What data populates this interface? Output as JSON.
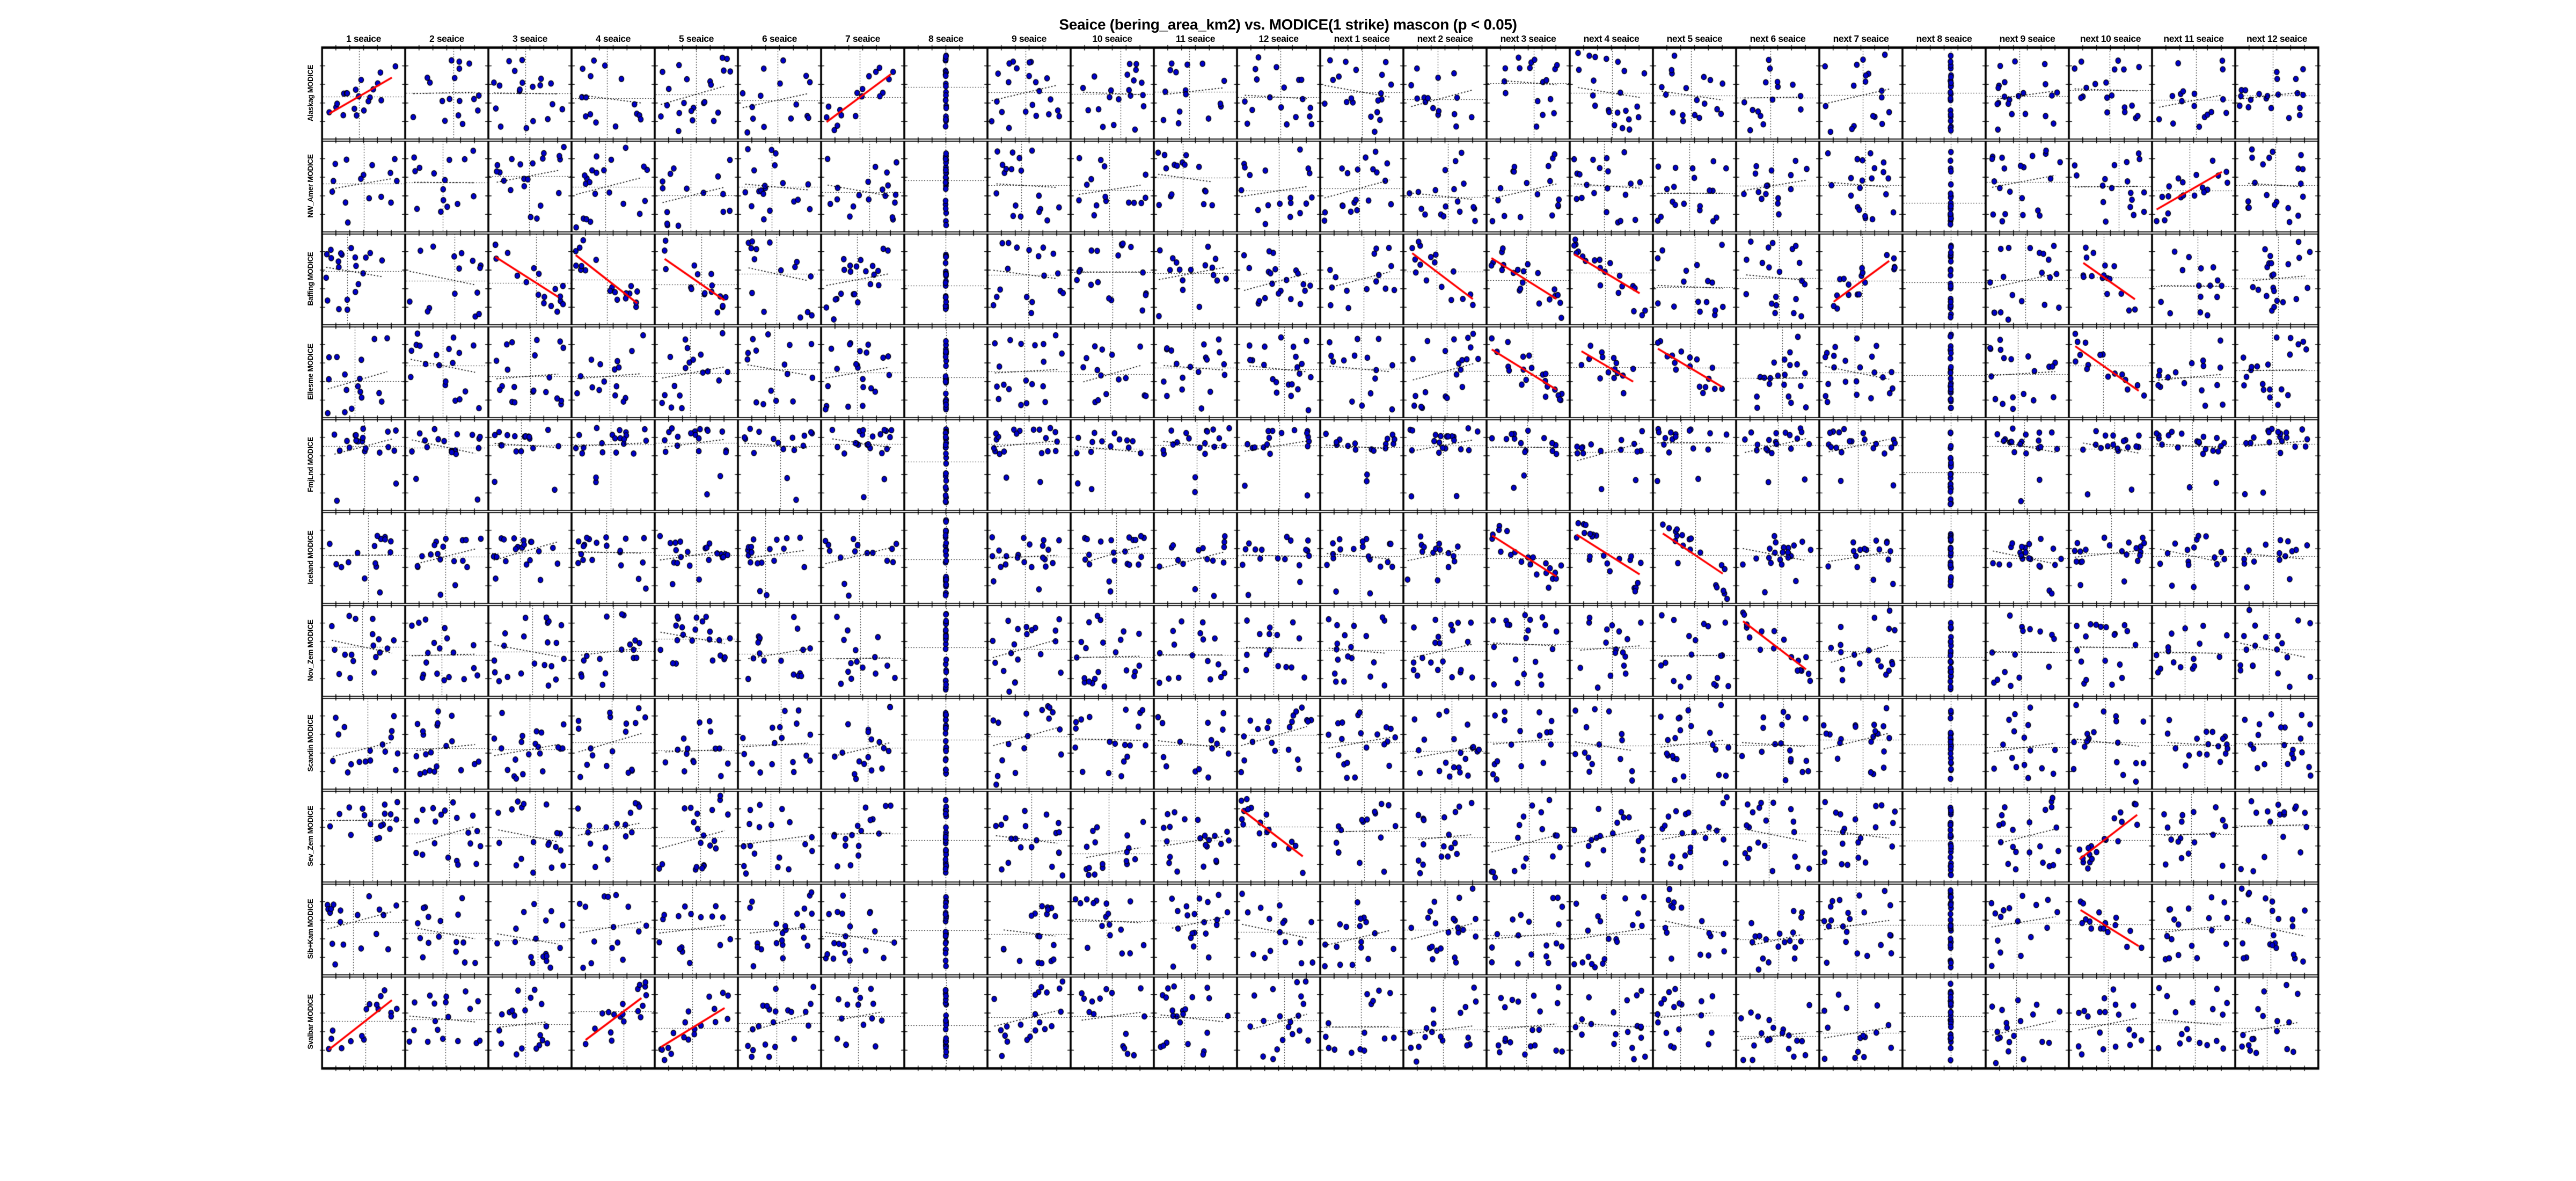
{
  "chart_data": {
    "type": "scatter",
    "subtype": "scatter-matrix",
    "title": "Seaice (bering_area_km2) vs. MODICE(1 strike) mascon (p < 0.05)",
    "columns": [
      "1 seaice",
      "2 seaice",
      "3 seaice",
      "4 seaice",
      "5 seaice",
      "6 seaice",
      "7 seaice",
      "8 seaice",
      "9 seaice",
      "10 seaice",
      "11 seaice",
      "12 seaice",
      "next 1 seaice",
      "next 2 seaice",
      "next 3 seaice",
      "next 4 seaice",
      "next 5 seaice",
      "next 6 seaice",
      "next 7 seaice",
      "next 8 seaice",
      "next 9 seaice",
      "next 10 seaice",
      "next 11 seaice",
      "next 12 seaice"
    ],
    "rows": [
      "Alaskag MODICE",
      "NW_Amer MODICE",
      "Baffing MODICE",
      "Ellesme MODICE",
      "FmjLnd MODICE",
      "Iceland MODICE",
      "Nov_Zem MODICE",
      "Scandin MODICE",
      "Sev_Zem MODICE",
      "Sib+Kam MODICE",
      "Svalbar MODICE"
    ],
    "panels": {
      "n_rows": 11,
      "n_cols": 24
    },
    "points_per_cell_approx": 20,
    "marker": {
      "shape": "circle",
      "fill": "#0000cc",
      "edge": "#000000"
    },
    "colors": {
      "significant_line": "#ff0000",
      "trend_line": "#000000",
      "mean_line": "#000000",
      "border": "#000000",
      "background": "#ffffff"
    },
    "legend": "none",
    "axis_tick_labels": "none",
    "degenerate_x_columns": [
      "8 seaice",
      "next 8 seaice"
    ],
    "significant_cells": [
      {
        "row": "Alaskag MODICE",
        "col": "1 seaice",
        "slope": "up"
      },
      {
        "row": "Alaskag MODICE",
        "col": "7 seaice",
        "slope": "up"
      },
      {
        "row": "NW_Amer MODICE",
        "col": "next 11 seaice",
        "slope": "up"
      },
      {
        "row": "Baffing MODICE",
        "col": "3 seaice",
        "slope": "down"
      },
      {
        "row": "Baffing MODICE",
        "col": "4 seaice",
        "slope": "down"
      },
      {
        "row": "Baffing MODICE",
        "col": "5 seaice",
        "slope": "down"
      },
      {
        "row": "Baffing MODICE",
        "col": "next 2 seaice",
        "slope": "down"
      },
      {
        "row": "Baffing MODICE",
        "col": "next 3 seaice",
        "slope": "down"
      },
      {
        "row": "Baffing MODICE",
        "col": "next 4 seaice",
        "slope": "down"
      },
      {
        "row": "Baffing MODICE",
        "col": "next 7 seaice",
        "slope": "up"
      },
      {
        "row": "Baffing MODICE",
        "col": "next 10 seaice",
        "slope": "down"
      },
      {
        "row": "Ellesme MODICE",
        "col": "next 3 seaice",
        "slope": "down"
      },
      {
        "row": "Ellesme MODICE",
        "col": "next 4 seaice",
        "slope": "down"
      },
      {
        "row": "Ellesme MODICE",
        "col": "next 5 seaice",
        "slope": "down"
      },
      {
        "row": "Ellesme MODICE",
        "col": "next 10 seaice",
        "slope": "down"
      },
      {
        "row": "Iceland MODICE",
        "col": "next 3 seaice",
        "slope": "down"
      },
      {
        "row": "Iceland MODICE",
        "col": "next 4 seaice",
        "slope": "down"
      },
      {
        "row": "Iceland MODICE",
        "col": "next 5 seaice",
        "slope": "down"
      },
      {
        "row": "Nov_Zem MODICE",
        "col": "next 6 seaice",
        "slope": "down"
      },
      {
        "row": "Sev_Zem MODICE",
        "col": "12 seaice",
        "slope": "down"
      },
      {
        "row": "Sev_Zem MODICE",
        "col": "next 10 seaice",
        "slope": "up"
      },
      {
        "row": "Sib+Kam MODICE",
        "col": "next 10 seaice",
        "slope": "down"
      },
      {
        "row": "Svalbar MODICE",
        "col": "1 seaice",
        "slope": "up"
      },
      {
        "row": "Svalbar MODICE",
        "col": "4 seaice",
        "slope": "up"
      },
      {
        "row": "Svalbar MODICE",
        "col": "5 seaice",
        "slope": "up"
      }
    ],
    "row_point_profiles": {
      "FmjLnd MODICE": "cluster-top-with-low-outliers",
      "Iceland MODICE": "mid-band-with-low-outliers"
    }
  }
}
